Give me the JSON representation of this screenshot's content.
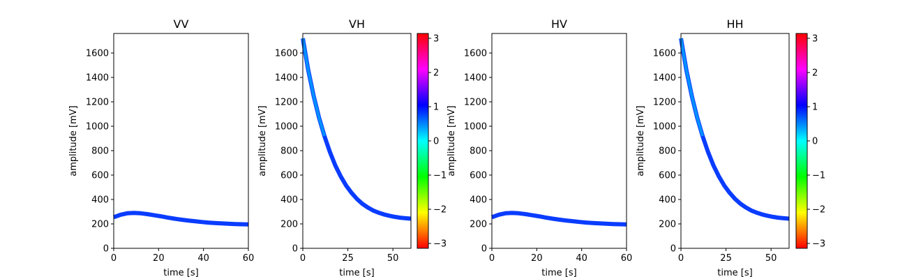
{
  "chart_data": [
    {
      "type": "line",
      "title": "VV",
      "xlabel": "time [s]",
      "ylabel": "amplitude [mV]",
      "xlim": [
        0,
        60
      ],
      "ylim": [
        0,
        1760
      ],
      "xticks": [
        "0",
        "20",
        "40",
        "60"
      ],
      "yticks": [
        "0",
        "200",
        "400",
        "600",
        "800",
        "1000",
        "1200",
        "1400",
        "1600"
      ],
      "colorbar": false,
      "line_color": "#0a3cff",
      "series": [
        {
          "x": [
            0,
            3,
            6,
            9,
            12,
            15,
            18,
            21,
            24,
            27,
            30,
            33,
            36,
            39,
            42,
            45,
            48,
            51,
            54,
            57,
            60
          ],
          "y": [
            255,
            275,
            287,
            290,
            287,
            280,
            271,
            262,
            252,
            243,
            235,
            228,
            222,
            216,
            211,
            207,
            204,
            201,
            199,
            197,
            196
          ]
        }
      ]
    },
    {
      "type": "line",
      "title": "VH",
      "xlabel": "time [s]",
      "ylabel": "amplitude [mV]",
      "xlim": [
        0,
        60
      ],
      "ylim": [
        0,
        1760
      ],
      "xticks": [
        "0",
        "25",
        "50"
      ],
      "yticks": [
        "0",
        "200",
        "400",
        "600",
        "800",
        "1000",
        "1200",
        "1400",
        "1600"
      ],
      "colorbar": true,
      "line_color": "#0a3cff",
      "series": [
        {
          "x": [
            0,
            3,
            6,
            9,
            12,
            15,
            18,
            21,
            24,
            27,
            30,
            33,
            36,
            39,
            42,
            45,
            48,
            51,
            54,
            57,
            60
          ],
          "y": [
            1720,
            1460,
            1250,
            1070,
            920,
            790,
            680,
            590,
            515,
            455,
            405,
            365,
            335,
            310,
            292,
            278,
            267,
            258,
            251,
            246,
            243
          ]
        }
      ]
    },
    {
      "type": "line",
      "title": "HV",
      "xlabel": "time [s]",
      "ylabel": "amplitude [mV]",
      "xlim": [
        0,
        60
      ],
      "ylim": [
        0,
        1760
      ],
      "xticks": [
        "0",
        "20",
        "40",
        "60"
      ],
      "yticks": [
        "0",
        "200",
        "400",
        "600",
        "800",
        "1000",
        "1200",
        "1400",
        "1600"
      ],
      "colorbar": false,
      "line_color": "#0a3cff",
      "series": [
        {
          "x": [
            0,
            3,
            6,
            9,
            12,
            15,
            18,
            21,
            24,
            27,
            30,
            33,
            36,
            39,
            42,
            45,
            48,
            51,
            54,
            57,
            60
          ],
          "y": [
            255,
            275,
            287,
            290,
            287,
            280,
            271,
            262,
            252,
            243,
            235,
            228,
            222,
            216,
            211,
            207,
            204,
            201,
            199,
            197,
            196
          ]
        }
      ]
    },
    {
      "type": "line",
      "title": "HH",
      "xlabel": "time [s]",
      "ylabel": "amplitude [mV]",
      "xlim": [
        0,
        60
      ],
      "ylim": [
        0,
        1760
      ],
      "xticks": [
        "0",
        "25",
        "50"
      ],
      "yticks": [
        "0",
        "200",
        "400",
        "600",
        "800",
        "1000",
        "1200",
        "1400",
        "1600"
      ],
      "colorbar": true,
      "line_color": "#0a3cff",
      "series": [
        {
          "x": [
            0,
            3,
            6,
            9,
            12,
            15,
            18,
            21,
            24,
            27,
            30,
            33,
            36,
            39,
            42,
            45,
            48,
            51,
            54,
            57,
            60
          ],
          "y": [
            1720,
            1460,
            1250,
            1070,
            920,
            790,
            680,
            590,
            515,
            455,
            405,
            365,
            335,
            310,
            292,
            278,
            267,
            258,
            251,
            246,
            243
          ]
        }
      ]
    }
  ],
  "colorbar": {
    "range": [
      -3.14159,
      3.14159
    ],
    "ticks": [
      "−3",
      "−2",
      "−1",
      "0",
      "1",
      "2",
      "3"
    ],
    "tick_values": [
      -3,
      -2,
      -1,
      0,
      1,
      2,
      3
    ],
    "colormap": "hsv"
  }
}
